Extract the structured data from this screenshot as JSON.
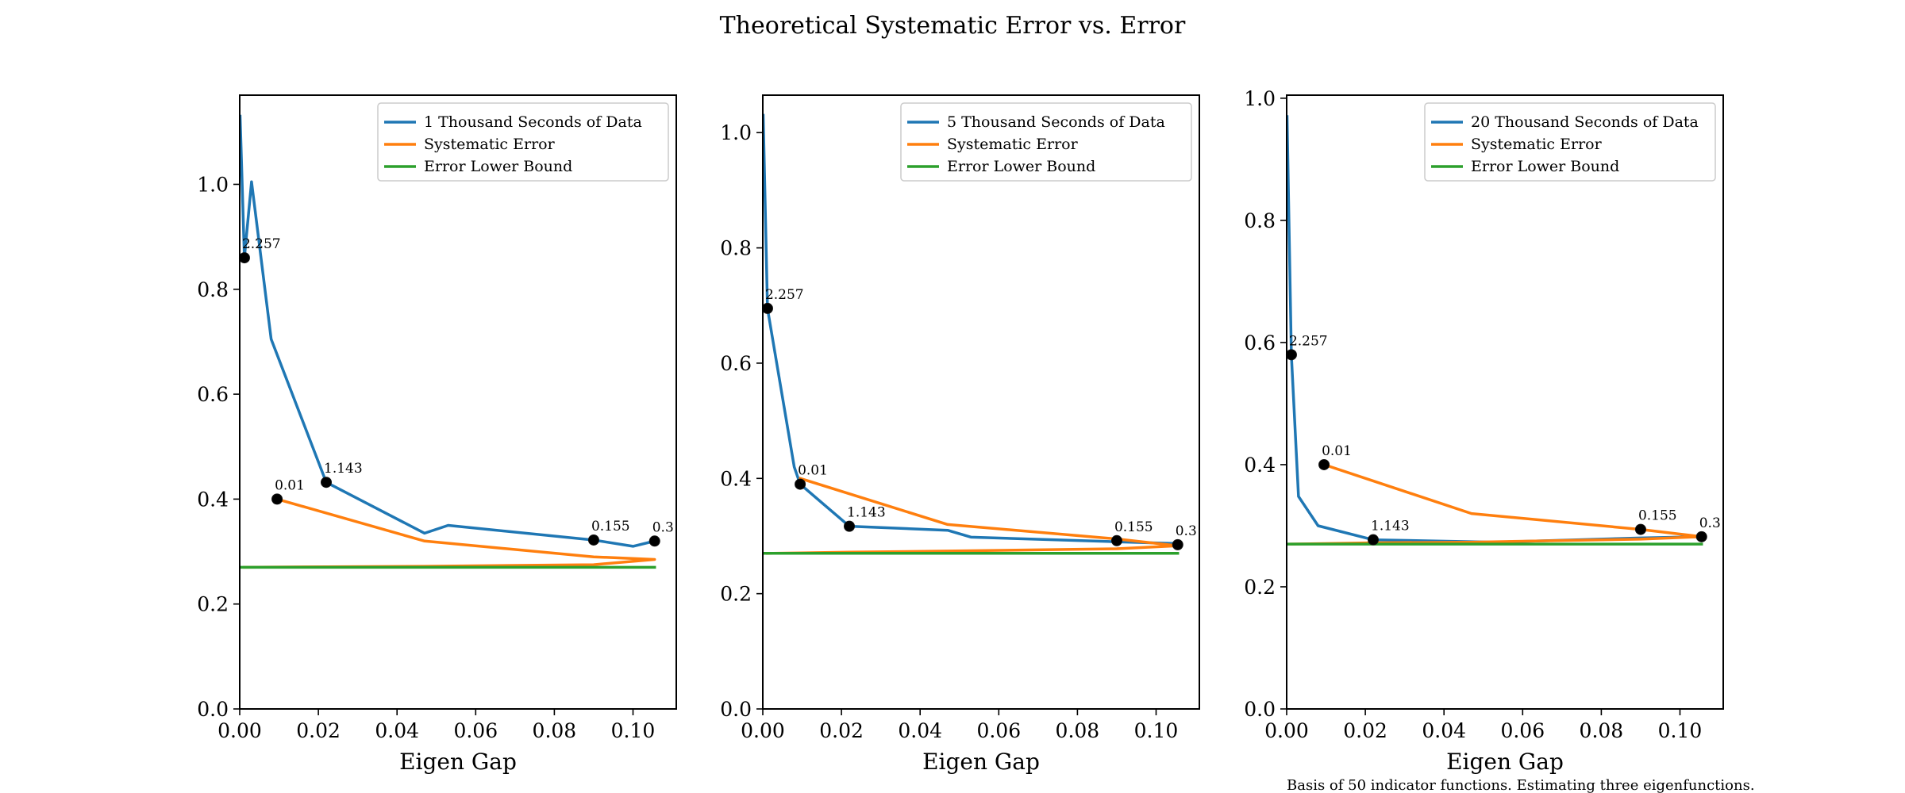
{
  "figure": {
    "title": "Theoretical Systematic Error vs. Error",
    "footnote": "Basis of 50 indicator functions. Estimating three eigenfunctions."
  },
  "colors": {
    "data": "#1f77b4",
    "systematic": "#ff7f0e",
    "bound": "#2ca02c",
    "marker": "#000000"
  },
  "chart_data": [
    {
      "type": "line",
      "xlabel": "Eigen Gap",
      "ylabel": "",
      "xlim": [
        0,
        0.111
      ],
      "ylim": [
        0,
        1.17
      ],
      "xticks": [
        0,
        0.02,
        0.04,
        0.06,
        0.08,
        0.1
      ],
      "xtick_labels": [
        "0.00",
        "0.02",
        "0.04",
        "0.06",
        "0.08",
        "0.10"
      ],
      "yticks": [
        0,
        0.2,
        0.4,
        0.6,
        0.8,
        1.0
      ],
      "ytick_labels": [
        "0.0",
        "0.2",
        "0.4",
        "0.6",
        "0.8",
        "1.0"
      ],
      "legend_position": "top-right",
      "series": [
        {
          "name": "1 Thousand Seconds of Data",
          "color_key": "data",
          "x": [
            0.0001,
            0.0012,
            0.003,
            0.008,
            0.022,
            0.047,
            0.053,
            0.09,
            0.1,
            0.1055
          ],
          "y": [
            1.13,
            0.86,
            1.005,
            0.705,
            0.432,
            0.335,
            0.35,
            0.322,
            0.31,
            0.32
          ]
        },
        {
          "name": "Systematic Error",
          "color_key": "systematic",
          "x": [
            0.0095,
            0.047,
            0.09,
            0.1055,
            0.09,
            0.047,
            0.022,
            0.0012
          ],
          "y": [
            0.4,
            0.32,
            0.29,
            0.285,
            0.275,
            0.272,
            0.271,
            0.27
          ]
        },
        {
          "name": "Error Lower Bound",
          "color_key": "bound",
          "x": [
            0.0,
            0.1055
          ],
          "y": [
            0.27,
            0.27
          ]
        }
      ],
      "points": [
        {
          "x": 0.0012,
          "y": 0.86,
          "label": "2.257"
        },
        {
          "x": 0.0095,
          "y": 0.4,
          "label": "0.01"
        },
        {
          "x": 0.022,
          "y": 0.432,
          "label": "1.143"
        },
        {
          "x": 0.09,
          "y": 0.322,
          "label": "0.155"
        },
        {
          "x": 0.1055,
          "y": 0.32,
          "label": "0.3"
        }
      ]
    },
    {
      "type": "line",
      "xlabel": "Eigen Gap",
      "ylabel": "",
      "xlim": [
        0,
        0.111
      ],
      "ylim": [
        0,
        1.065
      ],
      "xticks": [
        0,
        0.02,
        0.04,
        0.06,
        0.08,
        0.1
      ],
      "xtick_labels": [
        "0.00",
        "0.02",
        "0.04",
        "0.06",
        "0.08",
        "0.10"
      ],
      "yticks": [
        0,
        0.2,
        0.4,
        0.6,
        0.8,
        1.0
      ],
      "ytick_labels": [
        "0.0",
        "0.2",
        "0.4",
        "0.6",
        "0.8",
        "1.0"
      ],
      "legend_position": "top-right",
      "series": [
        {
          "name": "5 Thousand Seconds of Data",
          "color_key": "data",
          "x": [
            0.0001,
            0.0012,
            0.008,
            0.0095,
            0.022,
            0.047,
            0.053,
            0.09,
            0.1055
          ],
          "y": [
            1.03,
            0.695,
            0.42,
            0.39,
            0.317,
            0.31,
            0.298,
            0.29,
            0.287
          ]
        },
        {
          "name": "Systematic Error",
          "color_key": "systematic",
          "x": [
            0.0095,
            0.047,
            0.09,
            0.1055,
            0.09,
            0.047,
            0.022,
            0.0012
          ],
          "y": [
            0.4,
            0.32,
            0.295,
            0.283,
            0.278,
            0.274,
            0.272,
            0.27
          ]
        },
        {
          "name": "Error Lower Bound",
          "color_key": "bound",
          "x": [
            0.0,
            0.1055
          ],
          "y": [
            0.27,
            0.27
          ]
        }
      ],
      "points": [
        {
          "x": 0.0012,
          "y": 0.695,
          "label": "2.257"
        },
        {
          "x": 0.0095,
          "y": 0.39,
          "label": "0.01"
        },
        {
          "x": 0.022,
          "y": 0.317,
          "label": "1.143"
        },
        {
          "x": 0.09,
          "y": 0.292,
          "label": "0.155"
        },
        {
          "x": 0.1055,
          "y": 0.285,
          "label": "0.3"
        }
      ]
    },
    {
      "type": "line",
      "xlabel": "Eigen Gap",
      "ylabel": "",
      "xlim": [
        0,
        0.111
      ],
      "ylim": [
        0,
        1.005
      ],
      "xticks": [
        0,
        0.02,
        0.04,
        0.06,
        0.08,
        0.1
      ],
      "xtick_labels": [
        "0.00",
        "0.02",
        "0.04",
        "0.06",
        "0.08",
        "0.10"
      ],
      "yticks": [
        0,
        0.2,
        0.4,
        0.6,
        0.8,
        1.0
      ],
      "ytick_labels": [
        "0.0",
        "0.2",
        "0.4",
        "0.6",
        "0.8",
        "1.0"
      ],
      "legend_position": "top-right",
      "series": [
        {
          "name": "20 Thousand Seconds of Data",
          "color_key": "data",
          "x": [
            0.0001,
            0.0012,
            0.003,
            0.008,
            0.022,
            0.053,
            0.09,
            0.1055
          ],
          "y": [
            0.97,
            0.58,
            0.348,
            0.3,
            0.277,
            0.273,
            0.28,
            0.282
          ]
        },
        {
          "name": "Systematic Error",
          "color_key": "systematic",
          "x": [
            0.0095,
            0.047,
            0.09,
            0.1055,
            0.09,
            0.047,
            0.022,
            0.0012
          ],
          "y": [
            0.4,
            0.32,
            0.294,
            0.282,
            0.278,
            0.273,
            0.272,
            0.27
          ]
        },
        {
          "name": "Error Lower Bound",
          "color_key": "bound",
          "x": [
            0.0,
            0.1055
          ],
          "y": [
            0.27,
            0.27
          ]
        }
      ],
      "points": [
        {
          "x": 0.0012,
          "y": 0.58,
          "label": "2.257"
        },
        {
          "x": 0.0095,
          "y": 0.4,
          "label": "0.01"
        },
        {
          "x": 0.022,
          "y": 0.277,
          "label": "1.143"
        },
        {
          "x": 0.09,
          "y": 0.294,
          "label": "0.155"
        },
        {
          "x": 0.1055,
          "y": 0.282,
          "label": "0.3"
        }
      ]
    }
  ]
}
